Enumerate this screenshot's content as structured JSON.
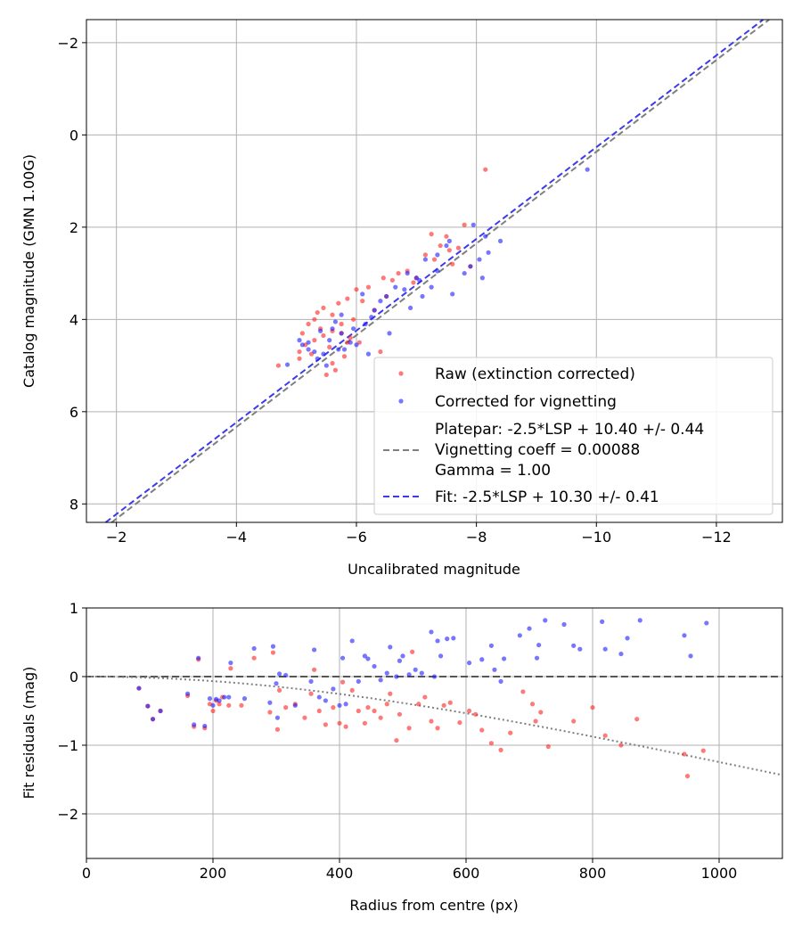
{
  "colors": {
    "raw": "#ff2020",
    "corrected": "#1a1aff",
    "platepar": "#7f7f7f",
    "fit": "#3a3aef",
    "grid": "#b0b0b0",
    "zero_line": "#404040",
    "vignetting_curve": "#7f7f7f"
  },
  "chart_data": [
    {
      "type": "scatter",
      "title": "",
      "xlabel": "Uncalibrated magnitude",
      "ylabel": "Catalog magnitude (GMN 1.00G)",
      "xlim": [
        -1.5,
        -13.1
      ],
      "ylim": [
        8.4,
        -2.5
      ],
      "xticks": [
        -2,
        -4,
        -6,
        -8,
        -10,
        -12
      ],
      "yticks": [
        -2,
        0,
        2,
        4,
        6,
        8
      ],
      "xtick_labels": [
        "−2",
        "−4",
        "−6",
        "−8",
        "−10",
        "−12"
      ],
      "ytick_labels": [
        "−2",
        "0",
        "2",
        "4",
        "6",
        "8"
      ],
      "grid": true,
      "legend_position": "bottom-right",
      "legend": {
        "raw": "Raw (extinction corrected)",
        "corrected": "Corrected for vignetting",
        "platepar_lines": [
          "Platepar: -2.5*LSP + 10.40 +/- 0.44",
          "Vignetting coeff = 0.00088",
          "Gamma = 1.00"
        ],
        "fit": "Fit: -2.5*LSP + 10.30 +/- 0.41"
      },
      "lines": [
        {
          "name": "Platepar",
          "offset": 10.4,
          "style": "dashed"
        },
        {
          "name": "Fit",
          "offset": 10.3,
          "style": "dashed"
        }
      ],
      "series": [
        {
          "name": "Raw (extinction corrected)",
          "points": [
            [
              -8.15,
              0.75
            ],
            [
              -7.25,
              2.15
            ],
            [
              -7.5,
              2.2
            ],
            [
              -7.4,
              2.4
            ],
            [
              -7.7,
              2.45
            ],
            [
              -7.8,
              1.95
            ],
            [
              -7.3,
              2.7
            ],
            [
              -7.6,
              2.8
            ],
            [
              -7.9,
              2.85
            ],
            [
              -6.7,
              3.0
            ],
            [
              -6.85,
              2.95
            ],
            [
              -6.6,
              3.15
            ],
            [
              -6.45,
              3.1
            ],
            [
              -6.2,
              3.3
            ],
            [
              -6.0,
              3.35
            ],
            [
              -5.85,
              3.55
            ],
            [
              -5.7,
              3.65
            ],
            [
              -5.45,
              3.75
            ],
            [
              -5.35,
              3.85
            ],
            [
              -5.2,
              4.1
            ],
            [
              -5.4,
              4.2
            ],
            [
              -5.6,
              4.25
            ],
            [
              -5.75,
              4.3
            ],
            [
              -5.9,
              4.4
            ],
            [
              -6.05,
              4.5
            ],
            [
              -5.3,
              4.45
            ],
            [
              -5.15,
              4.55
            ],
            [
              -5.05,
              4.7
            ],
            [
              -4.7,
              5.0
            ],
            [
              -5.5,
              5.2
            ],
            [
              -5.65,
              5.1
            ],
            [
              -5.95,
              4.0
            ],
            [
              -6.3,
              3.8
            ],
            [
              -6.1,
              3.6
            ],
            [
              -5.8,
              4.8
            ],
            [
              -5.25,
              4.75
            ],
            [
              -5.55,
              4.6
            ],
            [
              -6.4,
              4.7
            ],
            [
              -5.1,
              4.3
            ],
            [
              -5.45,
              4.35
            ],
            [
              -5.3,
              4.0
            ],
            [
              -5.75,
              4.1
            ],
            [
              -5.85,
              4.5
            ],
            [
              -7.0,
              3.1
            ],
            [
              -6.95,
              3.2
            ],
            [
              -7.15,
              2.6
            ],
            [
              -7.55,
              2.5
            ],
            [
              -6.5,
              3.5
            ],
            [
              -5.6,
              4.95
            ],
            [
              -5.05,
              4.85
            ],
            [
              -5.6,
              3.9
            ]
          ]
        },
        {
          "name": "Corrected for vignetting",
          "points": [
            [
              -9.85,
              0.75
            ],
            [
              -7.95,
              1.95
            ],
            [
              -8.15,
              2.2
            ],
            [
              -8.4,
              2.3
            ],
            [
              -8.2,
              2.55
            ],
            [
              -8.05,
              2.7
            ],
            [
              -7.9,
              2.85
            ],
            [
              -8.1,
              3.1
            ],
            [
              -7.5,
              2.4
            ],
            [
              -7.35,
              2.95
            ],
            [
              -7.15,
              2.7
            ],
            [
              -7.25,
              3.3
            ],
            [
              -7.6,
              3.45
            ],
            [
              -7.05,
              3.15
            ],
            [
              -6.8,
              3.35
            ],
            [
              -6.9,
              3.75
            ],
            [
              -6.5,
              3.5
            ],
            [
              -6.3,
              3.8
            ],
            [
              -6.15,
              4.1
            ],
            [
              -6.55,
              4.3
            ],
            [
              -5.9,
              4.5
            ],
            [
              -5.75,
              4.3
            ],
            [
              -5.6,
              4.2
            ],
            [
              -5.4,
              4.25
            ],
            [
              -5.2,
              4.5
            ],
            [
              -5.05,
              4.45
            ],
            [
              -4.85,
              4.98
            ],
            [
              -5.45,
              4.75
            ],
            [
              -5.7,
              4.65
            ],
            [
              -6.0,
              4.55
            ],
            [
              -5.35,
              4.85
            ],
            [
              -5.75,
              3.9
            ],
            [
              -5.65,
              4.05
            ],
            [
              -6.1,
              3.45
            ],
            [
              -6.4,
              3.6
            ],
            [
              -6.65,
              3.3
            ],
            [
              -6.85,
              3.0
            ],
            [
              -7.0,
              3.1
            ],
            [
              -7.35,
              2.6
            ],
            [
              -7.55,
              2.3
            ],
            [
              -7.1,
              3.5
            ],
            [
              -6.2,
              4.75
            ],
            [
              -5.8,
              4.65
            ],
            [
              -5.2,
              4.65
            ],
            [
              -5.3,
              4.7
            ],
            [
              -5.55,
              4.45
            ],
            [
              -5.95,
              4.2
            ],
            [
              -6.25,
              3.95
            ],
            [
              -5.5,
              5.0
            ],
            [
              -5.1,
              4.55
            ],
            [
              -7.8,
              3.0
            ]
          ]
        }
      ]
    },
    {
      "type": "scatter",
      "title": "",
      "xlabel": "Radius from centre (px)",
      "ylabel": "Fit residuals (mag)",
      "xlim": [
        0,
        1100
      ],
      "ylim": [
        -2.65,
        1.0
      ],
      "xticks": [
        0,
        200,
        400,
        600,
        800,
        1000
      ],
      "yticks": [
        1,
        0,
        -1,
        -2
      ],
      "xtick_labels": [
        "0",
        "200",
        "400",
        "600",
        "800",
        "1000"
      ],
      "ytick_labels": [
        "1",
        "0",
        "−1",
        "−2"
      ],
      "grid": true,
      "zero_line": 0,
      "vignetting_coeff": 0.00088,
      "series": [
        {
          "name": "Raw",
          "points": [
            [
              83,
              -0.17
            ],
            [
              97,
              -0.43
            ],
            [
              105,
              -0.62
            ],
            [
              117,
              -0.5
            ],
            [
              160,
              -0.28
            ],
            [
              170,
              -0.73
            ],
            [
              177,
              0.25
            ],
            [
              187,
              -0.75
            ],
            [
              195,
              -0.4
            ],
            [
              200,
              -0.5
            ],
            [
              205,
              -0.35
            ],
            [
              210,
              -0.4
            ],
            [
              215,
              -0.3
            ],
            [
              225,
              -0.42
            ],
            [
              228,
              0.12
            ],
            [
              245,
              -0.42
            ],
            [
              265,
              0.27
            ],
            [
              290,
              -0.52
            ],
            [
              295,
              0.35
            ],
            [
              302,
              -0.77
            ],
            [
              305,
              -0.2
            ],
            [
              315,
              -0.45
            ],
            [
              330,
              -0.4
            ],
            [
              345,
              -0.6
            ],
            [
              355,
              -0.25
            ],
            [
              360,
              0.1
            ],
            [
              368,
              -0.5
            ],
            [
              378,
              -0.7
            ],
            [
              390,
              -0.45
            ],
            [
              400,
              -0.68
            ],
            [
              405,
              -0.08
            ],
            [
              410,
              -0.73
            ],
            [
              420,
              -0.2
            ],
            [
              430,
              -0.5
            ],
            [
              440,
              -0.68
            ],
            [
              445,
              -0.45
            ],
            [
              455,
              -0.5
            ],
            [
              465,
              -0.6
            ],
            [
              475,
              -0.4
            ],
            [
              480,
              -0.25
            ],
            [
              490,
              -0.93
            ],
            [
              495,
              -0.55
            ],
            [
              510,
              -0.75
            ],
            [
              515,
              0.36
            ],
            [
              525,
              -0.4
            ],
            [
              535,
              -0.3
            ],
            [
              545,
              -0.65
            ],
            [
              555,
              -0.75
            ],
            [
              565,
              -0.42
            ],
            [
              575,
              -0.38
            ],
            [
              590,
              -0.67
            ],
            [
              605,
              -0.5
            ],
            [
              615,
              -0.55
            ],
            [
              625,
              -0.78
            ],
            [
              640,
              -0.97
            ],
            [
              655,
              -1.07
            ],
            [
              670,
              -0.82
            ],
            [
              690,
              -0.22
            ],
            [
              705,
              -0.4
            ],
            [
              710,
              -0.65
            ],
            [
              718,
              -0.52
            ],
            [
              730,
              -1.02
            ],
            [
              770,
              -0.65
            ],
            [
              800,
              -0.45
            ],
            [
              820,
              -0.86
            ],
            [
              845,
              -1.0
            ],
            [
              870,
              -0.62
            ],
            [
              945,
              -1.13
            ],
            [
              950,
              -1.45
            ],
            [
              975,
              -1.08
            ]
          ]
        },
        {
          "name": "Corrected",
          "points": [
            [
              83,
              -0.17
            ],
            [
              97,
              -0.43
            ],
            [
              105,
              -0.62
            ],
            [
              117,
              -0.5
            ],
            [
              160,
              -0.25
            ],
            [
              170,
              -0.7
            ],
            [
              177,
              0.27
            ],
            [
              187,
              -0.72
            ],
            [
              195,
              -0.32
            ],
            [
              200,
              -0.42
            ],
            [
              205,
              -0.33
            ],
            [
              210,
              -0.35
            ],
            [
              218,
              -0.3
            ],
            [
              225,
              -0.3
            ],
            [
              228,
              0.2
            ],
            [
              250,
              -0.32
            ],
            [
              265,
              0.41
            ],
            [
              290,
              -0.38
            ],
            [
              295,
              0.44
            ],
            [
              300,
              -0.1
            ],
            [
              302,
              -0.6
            ],
            [
              305,
              0.04
            ],
            [
              315,
              0.02
            ],
            [
              330,
              -0.42
            ],
            [
              355,
              -0.07
            ],
            [
              360,
              0.39
            ],
            [
              368,
              -0.3
            ],
            [
              378,
              -0.35
            ],
            [
              390,
              -0.18
            ],
            [
              400,
              -0.42
            ],
            [
              405,
              0.27
            ],
            [
              410,
              -0.4
            ],
            [
              420,
              0.52
            ],
            [
              430,
              -0.07
            ],
            [
              440,
              0.3
            ],
            [
              445,
              0.26
            ],
            [
              455,
              0.15
            ],
            [
              465,
              -0.05
            ],
            [
              475,
              0.05
            ],
            [
              480,
              0.43
            ],
            [
              490,
              0.0
            ],
            [
              495,
              0.23
            ],
            [
              500,
              0.3
            ],
            [
              510,
              0.03
            ],
            [
              520,
              0.1
            ],
            [
              530,
              0.05
            ],
            [
              545,
              0.65
            ],
            [
              550,
              0.0
            ],
            [
              555,
              0.52
            ],
            [
              560,
              0.3
            ],
            [
              570,
              0.55
            ],
            [
              580,
              0.56
            ],
            [
              605,
              0.2
            ],
            [
              625,
              0.25
            ],
            [
              640,
              0.45
            ],
            [
              645,
              0.1
            ],
            [
              655,
              -0.07
            ],
            [
              660,
              0.26
            ],
            [
              685,
              0.6
            ],
            [
              700,
              0.7
            ],
            [
              712,
              0.27
            ],
            [
              715,
              0.46
            ],
            [
              725,
              0.82
            ],
            [
              755,
              0.76
            ],
            [
              770,
              0.45
            ],
            [
              780,
              0.4
            ],
            [
              815,
              0.8
            ],
            [
              820,
              0.4
            ],
            [
              845,
              0.33
            ],
            [
              855,
              0.56
            ],
            [
              875,
              0.82
            ],
            [
              945,
              0.6
            ],
            [
              955,
              0.3
            ],
            [
              980,
              0.78
            ]
          ]
        }
      ]
    }
  ]
}
